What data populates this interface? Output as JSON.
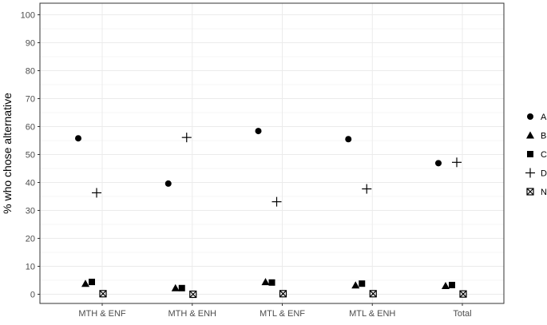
{
  "chart_data": {
    "type": "scatter",
    "title": "",
    "xlabel": "",
    "ylabel": "% who chose alternative",
    "categories": [
      "MTH & ENF",
      "MTH & ENH",
      "MTL & ENF",
      "MTL & ENH",
      "Total"
    ],
    "ylim": [
      0,
      100
    ],
    "yticks": [
      0,
      10,
      20,
      30,
      40,
      50,
      60,
      70,
      80,
      90,
      100
    ],
    "grid": true,
    "legend_position": "right",
    "series": [
      {
        "name": "A",
        "shape": "circle",
        "values": [
          55.8,
          39.6,
          58.4,
          55.5,
          46.9
        ]
      },
      {
        "name": "B",
        "shape": "triangle",
        "values": [
          3.8,
          2.2,
          4.4,
          3.2,
          3.0
        ]
      },
      {
        "name": "C",
        "shape": "square",
        "values": [
          4.4,
          2.2,
          4.2,
          3.8,
          3.3
        ]
      },
      {
        "name": "D",
        "shape": "plus",
        "values": [
          36.3,
          56.1,
          33.1,
          37.7,
          47.2
        ]
      },
      {
        "name": "N",
        "shape": "square-cross",
        "values": [
          0.2,
          0.0,
          0.2,
          0.2,
          0.1
        ]
      }
    ]
  },
  "colors": {
    "marker": "#000000",
    "grid": "#ebebeb",
    "panel_border": "#333333",
    "tick_label": "#4d4d4d"
  }
}
